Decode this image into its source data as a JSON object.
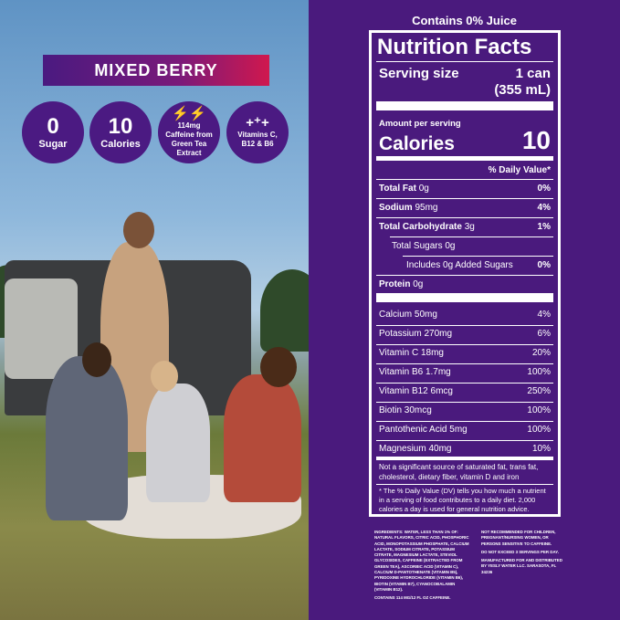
{
  "flavor": "MIXED BERRY",
  "badges": [
    {
      "value": "0",
      "label": "Sugar"
    },
    {
      "value": "10",
      "label": "Calories"
    },
    {
      "icon": "lightning-bolts-icon",
      "label": "114mg Caffeine from Green Tea Extract"
    },
    {
      "icon": "plus-signs-icon",
      "label": "Vitamins C, B12 & B6"
    }
  ],
  "juice": "Contains 0% Juice",
  "nutrition": {
    "title": "Nutrition Facts",
    "serving_label": "Serving size",
    "serving_value": "1 can",
    "serving_value2": "(355 mL)",
    "amount_per": "Amount per serving",
    "calories_label": "Calories",
    "calories": "10",
    "dv_header": "% Daily Value*",
    "rows": [
      {
        "name": "Total Fat",
        "amount": "0g",
        "dv": "0%"
      },
      {
        "name": "Sodium",
        "amount": "95mg",
        "dv": "4%"
      },
      {
        "name": "Total Carbohydrate",
        "amount": "3g",
        "dv": "1%"
      },
      {
        "name": "Total Sugars 0g",
        "amount": "",
        "dv": ""
      },
      {
        "name": "Includes 0g Added Sugars",
        "amount": "",
        "dv": "0%"
      },
      {
        "name": "Protein",
        "amount": "0g",
        "dv": ""
      }
    ],
    "vitamins": [
      {
        "name": "Calcium 50mg",
        "dv": "4%"
      },
      {
        "name": "Potassium 270mg",
        "dv": "6%"
      },
      {
        "name": "Vitamin C 18mg",
        "dv": "20%"
      },
      {
        "name": "Vitamin B6 1.7mg",
        "dv": "100%"
      },
      {
        "name": "Vitamin B12 6mcg",
        "dv": "250%"
      },
      {
        "name": "Biotin 30mcg",
        "dv": "100%"
      },
      {
        "name": "Pantothenic Acid 5mg",
        "dv": "100%"
      },
      {
        "name": "Magnesium 40mg",
        "dv": "10%"
      }
    ],
    "not_significant": "Not a significant source of saturated fat, trans fat, cholesterol, dietary fiber, vitamin D and iron",
    "footnote": "* The % Daily Value (DV) tells you how much a nutrient in a serving of food contributes to a daily diet. 2,000 calories a day is used for general nutrition advice."
  },
  "ingredients": "INGREDIENTS: WATER, LESS THAN 1% OF: NATURAL FLAVORS, CITRIC ACID, PHOSPHORIC ACID, MONOPOTASSIUM PHOSPHATE, CALCIUM LACTATE, SODIUM CITRATE, POTASSIUM CITRATE, MAGNESIUM LACTATE, STEVIOL GLYCOSIDES, CAFFEINE (EXTRACTED FROM GREEN TEA), ASCORBIC ACID (VITAMIN C), CALCIUM D-PANTOTHENATE (VITAMIN B5), PYRIDOXINE HYDROCHLORIDE (VITAMIN B6), BIOTIN (VITAMIN B7), CYANOCOBALAMIN (VITAMIN B12).",
  "caffeine_note": "CONTAINS 114 MG/12 FL OZ CAFFEINE.",
  "warning": "NOT RECOMMENDED FOR CHILDREN, PREGNANT/NURSING WOMEN, OR PERSONS SENSITIVE TO CAFFEINE.",
  "limit": "DO NOT EXCEED 3 SERVINGS PER DAY.",
  "manufacturer": "MANUFACTURED FOR AND DISTRIBUTED BY YESLY WATER LLC. SARASOTA, FL 34236"
}
